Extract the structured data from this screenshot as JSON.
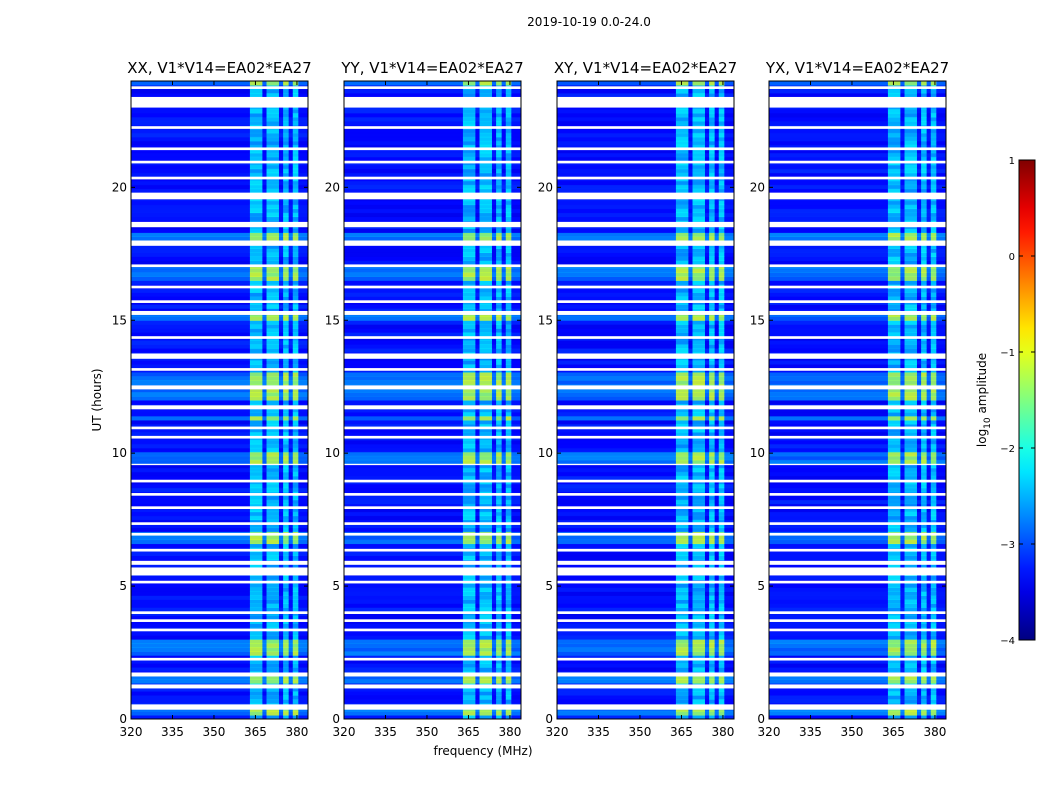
{
  "figure": {
    "suptitle": "2019-10-19 0.0-24.0"
  },
  "chart_data": {
    "type": "heatmap",
    "description_of_axes": "dynamic spectrum panels, time vs frequency",
    "xlabel": "frequency (MHz)",
    "ylabel": "UT (hours)",
    "xlim": [
      320,
      384
    ],
    "ylim": [
      0,
      24
    ],
    "xticks": [
      320,
      335,
      350,
      365,
      380
    ],
    "xtick_labels": [
      "320",
      "335",
      "350",
      "365",
      "380"
    ],
    "yticks": [
      0,
      5,
      10,
      15,
      20
    ],
    "ytick_labels": [
      "0",
      "5",
      "10",
      "15",
      "20"
    ],
    "colorbar": {
      "label": "log10 amplitude",
      "label_base": "log",
      "label_sub": "10",
      "label_rest": " amplitude",
      "range": [
        -4,
        1
      ],
      "ticks": [
        1,
        0,
        -1,
        -2,
        -3,
        -4
      ],
      "tick_labels": [
        "1",
        "0",
        "−1",
        "−2",
        "−3",
        "−4"
      ],
      "colormap": "jet"
    },
    "panels": [
      {
        "name": "xx",
        "title": "XX, V1*V14=EA02*EA27"
      },
      {
        "name": "yy",
        "title": "YY, V1*V14=EA02*EA27"
      },
      {
        "name": "xy",
        "title": "XY, V1*V14=EA02*EA27"
      },
      {
        "name": "yx",
        "title": "YX, V1*V14=EA02*EA27"
      }
    ],
    "background_level": -3.3,
    "rfi_band_mhz": [
      363,
      381
    ],
    "rfi_channels_mhz": [
      [
        363,
        367.5
      ],
      [
        369,
        373.5
      ],
      [
        375,
        377
      ],
      [
        378.5,
        380.5
      ]
    ],
    "flagged_time_ranges_hours": [
      [
        0.35,
        0.55
      ],
      [
        1.15,
        1.3
      ],
      [
        1.6,
        1.75
      ],
      [
        2.2,
        2.3
      ],
      [
        3.3,
        3.4
      ],
      [
        3.65,
        3.75
      ],
      [
        3.95,
        4.05
      ],
      [
        5.1,
        5.2
      ],
      [
        5.4,
        5.7
      ],
      [
        5.8,
        5.95
      ],
      [
        6.3,
        6.4
      ],
      [
        6.9,
        7.0
      ],
      [
        7.3,
        7.4
      ],
      [
        7.9,
        8.0
      ],
      [
        8.4,
        8.5
      ],
      [
        8.9,
        9.0
      ],
      [
        9.55,
        9.6
      ],
      [
        10.55,
        10.65
      ],
      [
        10.9,
        11.0
      ],
      [
        11.65,
        11.8
      ],
      [
        12.4,
        12.55
      ],
      [
        13.1,
        13.2
      ],
      [
        13.55,
        13.75
      ],
      [
        14.3,
        14.4
      ],
      [
        15.2,
        15.35
      ],
      [
        15.65,
        15.75
      ],
      [
        16.2,
        16.3
      ],
      [
        17.0,
        17.1
      ],
      [
        17.8,
        18.0
      ],
      [
        18.5,
        18.7
      ],
      [
        19.55,
        19.8
      ],
      [
        20.3,
        20.4
      ],
      [
        20.9,
        21.0
      ],
      [
        21.4,
        21.5
      ],
      [
        22.2,
        22.3
      ],
      [
        23.0,
        23.4
      ],
      [
        23.7,
        23.8
      ]
    ],
    "bright_rfi_time_ranges_hours": [
      [
        0.1,
        0.3
      ],
      [
        1.3,
        1.6
      ],
      [
        2.3,
        2.9
      ],
      [
        6.5,
        6.9
      ],
      [
        9.5,
        9.9
      ],
      [
        11.2,
        11.3
      ],
      [
        12.0,
        12.9
      ],
      [
        14.9,
        15.2
      ],
      [
        16.5,
        17.0
      ],
      [
        17.9,
        18.2
      ],
      [
        23.8,
        24.0
      ]
    ]
  }
}
